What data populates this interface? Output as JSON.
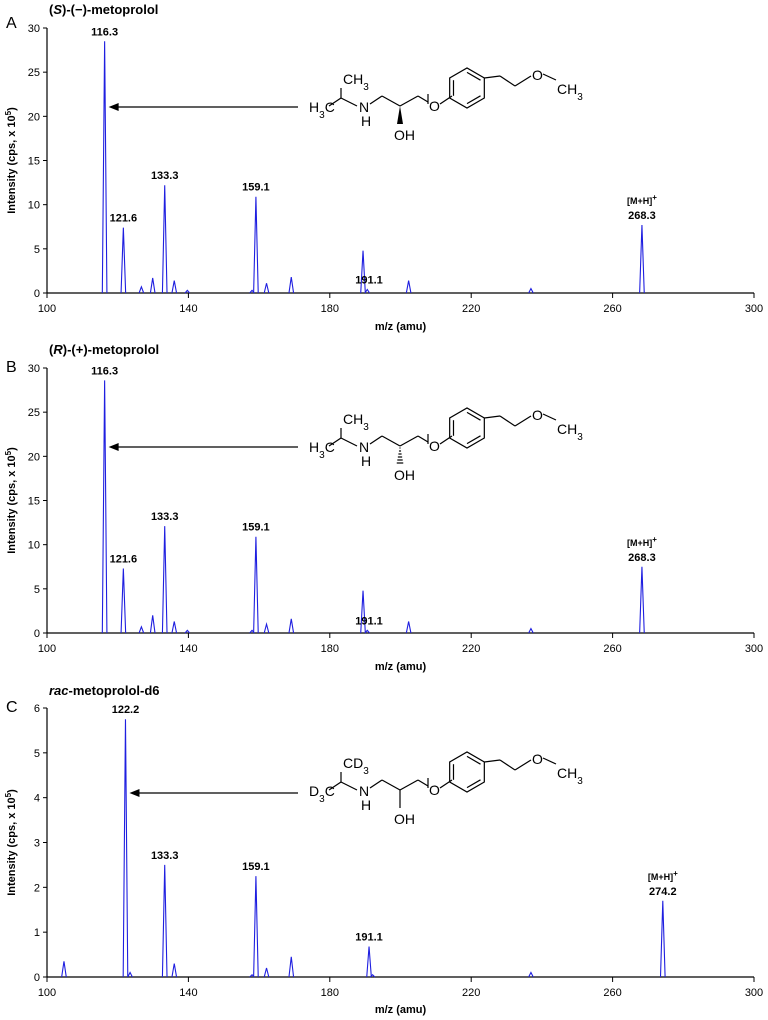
{
  "figure": {
    "panels": [
      {
        "letter": "A",
        "title_prefix": "(",
        "title_stereo": "S",
        "title_suffix": ")-(−)-metoprolol",
        "structure": {
          "top_sub": "CH3",
          "left_sub": "H3C",
          "stereo": "wedge"
        }
      },
      {
        "letter": "B",
        "title_prefix": "(",
        "title_stereo": "R",
        "title_suffix": ")-(+)-metoprolol",
        "structure": {
          "top_sub": "CH3",
          "left_sub": "H3C",
          "stereo": "hash"
        }
      },
      {
        "letter": "C",
        "title_prefix": "",
        "title_stereo": "rac",
        "title_suffix": "-metoprolol-d6",
        "structure": {
          "top_sub": "CD3",
          "left_sub": "D3C",
          "stereo": "none"
        }
      }
    ],
    "structure_labels": {
      "nh": "N",
      "h": "H",
      "oh": "OH",
      "o_ether": "O",
      "o_methoxy": "O",
      "ch3_methoxy": "CH3"
    }
  },
  "chart_data": [
    {
      "type": "line",
      "xlabel": "m/z (amu)",
      "ylabel": "Intensity (cps, x 10^5)",
      "xlim": [
        100,
        300
      ],
      "ylim": [
        0,
        30
      ],
      "xticks": [
        100,
        140,
        180,
        220,
        260,
        300
      ],
      "yticks": [
        0,
        5,
        10,
        15,
        20,
        25,
        30
      ],
      "color": "#1f1fe0",
      "peaks": [
        [
          116.3,
          28.5
        ],
        [
          121.6,
          7.4
        ],
        [
          126.7,
          0.7
        ],
        [
          129.9,
          1.7
        ],
        [
          133.3,
          12.2
        ],
        [
          136.0,
          1.4
        ],
        [
          139.7,
          0.3
        ],
        [
          158.0,
          0.3
        ],
        [
          159.1,
          10.9
        ],
        [
          162.1,
          1.1
        ],
        [
          169.1,
          1.8
        ],
        [
          189.4,
          4.8
        ],
        [
          190.6,
          0.4
        ],
        [
          202.3,
          1.4
        ],
        [
          236.9,
          0.5
        ],
        [
          268.3,
          7.7
        ]
      ],
      "annotations": [
        {
          "x": 116.3,
          "text": "116.3"
        },
        {
          "x": 121.6,
          "text": "121.6"
        },
        {
          "x": 133.3,
          "text": "133.3"
        },
        {
          "x": 159.1,
          "text": "159.1"
        },
        {
          "x": 191.1,
          "text": "191.1"
        },
        {
          "x": 268.3,
          "text": "268.3",
          "ion": "[M+H]"
        }
      ]
    },
    {
      "type": "line",
      "xlabel": "m/z (amu)",
      "ylabel": "Intensity (cps, x 10^5)",
      "xlim": [
        100,
        300
      ],
      "ylim": [
        0,
        30
      ],
      "xticks": [
        100,
        140,
        180,
        220,
        260,
        300
      ],
      "yticks": [
        0,
        5,
        10,
        15,
        20,
        25,
        30
      ],
      "color": "#1f1fe0",
      "peaks": [
        [
          116.3,
          28.6
        ],
        [
          121.6,
          7.3
        ],
        [
          126.7,
          0.7
        ],
        [
          129.9,
          2.0
        ],
        [
          133.3,
          12.1
        ],
        [
          136.0,
          1.3
        ],
        [
          139.7,
          0.3
        ],
        [
          158.0,
          0.3
        ],
        [
          159.1,
          10.9
        ],
        [
          162.1,
          1.0
        ],
        [
          169.1,
          1.6
        ],
        [
          189.4,
          4.8
        ],
        [
          190.6,
          0.3
        ],
        [
          202.3,
          1.3
        ],
        [
          236.9,
          0.5
        ],
        [
          268.3,
          7.5
        ]
      ],
      "annotations": [
        {
          "x": 116.3,
          "text": "116.3"
        },
        {
          "x": 121.6,
          "text": "121.6"
        },
        {
          "x": 133.3,
          "text": "133.3"
        },
        {
          "x": 159.1,
          "text": "159.1"
        },
        {
          "x": 191.1,
          "text": "191.1"
        },
        {
          "x": 268.3,
          "text": "268.3",
          "ion": "[M+H]"
        }
      ]
    },
    {
      "type": "line",
      "xlabel": "m/z (amu)",
      "ylabel": "Intensity (cps, x 10^5)",
      "xlim": [
        100,
        300
      ],
      "ylim": [
        0,
        6
      ],
      "xticks": [
        100,
        140,
        180,
        220,
        260,
        300
      ],
      "yticks": [
        0,
        1,
        2,
        3,
        4,
        5,
        6
      ],
      "color": "#1f1fe0",
      "peaks": [
        [
          104.8,
          0.35
        ],
        [
          122.2,
          5.75
        ],
        [
          123.5,
          0.1
        ],
        [
          133.3,
          2.5
        ],
        [
          136.0,
          0.3
        ],
        [
          158.0,
          0.05
        ],
        [
          159.1,
          2.25
        ],
        [
          162.1,
          0.2
        ],
        [
          169.1,
          0.45
        ],
        [
          191.1,
          0.68
        ],
        [
          192.1,
          0.05
        ],
        [
          236.9,
          0.1
        ],
        [
          274.2,
          1.7
        ]
      ],
      "annotations": [
        {
          "x": 122.2,
          "text": "122.2"
        },
        {
          "x": 133.3,
          "text": "133.3"
        },
        {
          "x": 159.1,
          "text": "159.1"
        },
        {
          "x": 191.1,
          "text": "191.1"
        },
        {
          "x": 274.2,
          "text": "274.2",
          "ion": "[M+H]"
        }
      ]
    }
  ]
}
